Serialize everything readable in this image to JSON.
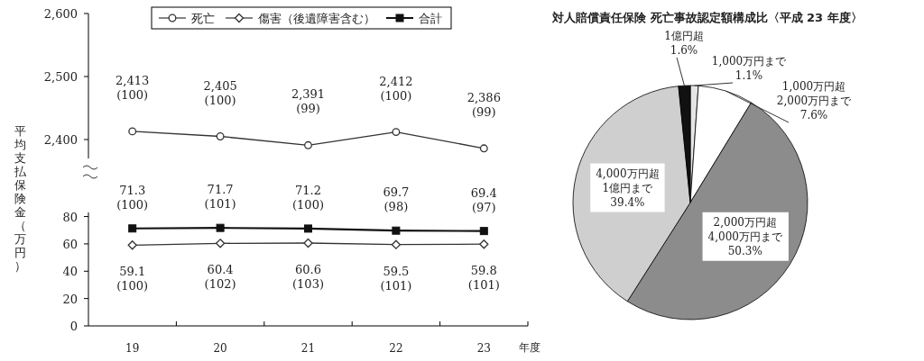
{
  "chart_data": [
    {
      "type": "line",
      "categories": [
        "19",
        "20",
        "21",
        "22",
        "23"
      ],
      "ylim": [
        2370,
        2600
      ],
      "yticks": [
        {
          "value": 2400,
          "label": "2,400"
        },
        {
          "value": 2500,
          "label": "2,500"
        },
        {
          "value": 2600,
          "label": "2,600"
        }
      ],
      "tick_labels": "y",
      "ylabel": "平均支払保険金（万円）",
      "legend": "top",
      "series": [
        {
          "name": "死亡",
          "color": "#333333",
          "marker": "circle",
          "values": [
            2413,
            2405,
            2391,
            2412,
            2386
          ],
          "value_labels": [
            "2,413\n(100)",
            "2,405\n(100)",
            "2,391\n(99)",
            "2,412\n(100)",
            "2,386\n(99)"
          ]
        }
      ]
    },
    {
      "type": "line",
      "categories": [
        "19",
        "20",
        "21",
        "22",
        "23"
      ],
      "xlabel": "年度",
      "ylim": [
        0,
        83
      ],
      "yticks": [
        0,
        20,
        40,
        60,
        80
      ],
      "legend": "top",
      "series": [
        {
          "name": "傷害（後遺障害含む）",
          "color": "#333333",
          "marker": "diamond",
          "values": [
            59.1,
            60.4,
            60.6,
            59.5,
            59.8
          ],
          "value_labels": [
            "59.1\n(100)",
            "60.4\n(102)",
            "60.6\n(103)",
            "59.5\n(101)",
            "59.8\n(101)"
          ]
        },
        {
          "name": "合計",
          "color": "#111111",
          "marker": "square",
          "values": [
            71.3,
            71.7,
            71.2,
            69.7,
            69.4
          ],
          "value_labels": [
            "71.3\n(100)",
            "71.7\n(101)",
            "71.2\n(100)",
            "69.7\n(98)",
            "69.4\n(97)"
          ]
        }
      ]
    },
    {
      "type": "pie",
      "title": "対人賠償責任保険 死亡事故認定額構成比〈平成 23 年度〉",
      "categories": [
        "1,000万円まで",
        "1,000万円超\n2,000万円まで",
        "2,000万円超\n4,000万円まで",
        "4,000万円超\n1億円まで",
        "1億円超"
      ],
      "values": [
        1.1,
        7.6,
        50.3,
        39.4,
        1.6
      ],
      "colors": [
        "#e6e6e6",
        "#ffffff",
        "#8c8c8c",
        "#cfcfcf",
        "#111111"
      ],
      "value_labels": [
        "1.1%",
        "7.6%",
        "50.3%",
        "39.4%",
        "1.6%"
      ]
    }
  ]
}
